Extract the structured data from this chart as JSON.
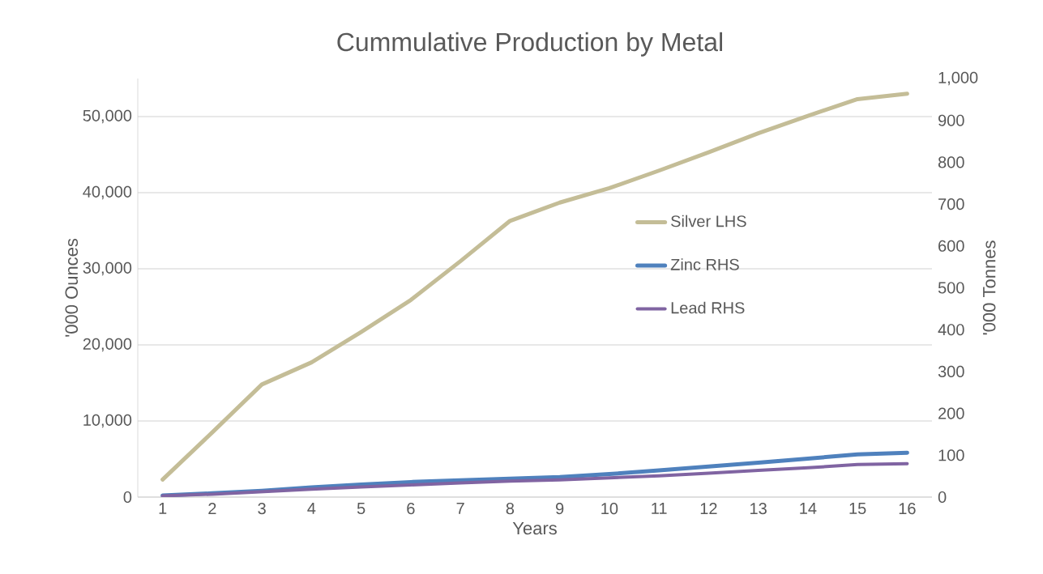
{
  "chart_data": {
    "type": "line",
    "title": "Cummulative Production by Metal",
    "xlabel": "Years",
    "ylabel": "'000 Ounces",
    "y2label": "'000 Tonnes",
    "categories": [
      "1",
      "2",
      "3",
      "4",
      "5",
      "6",
      "7",
      "8",
      "9",
      "10",
      "11",
      "12",
      "13",
      "14",
      "15",
      "16"
    ],
    "series": [
      {
        "name": "Silver LHS",
        "color": "#c4bd97",
        "values": [
          2300,
          8500,
          14800,
          17700,
          21700,
          25900,
          31000,
          36300,
          38700,
          40600,
          42900,
          45300,
          47800,
          50100,
          52300,
          53000
        ]
      },
      {
        "name": "Zinc RHS",
        "color": "#4f81bd",
        "axis": "y2",
        "values": [
          4,
          9,
          15,
          23,
          30,
          36,
          40,
          44,
          48,
          55,
          64,
          73,
          82,
          92,
          102,
          106
        ]
      },
      {
        "name": "Lead RHS",
        "color": "#8064a2",
        "axis": "y2",
        "values": [
          3,
          7,
          13,
          19,
          24,
          29,
          34,
          38,
          41,
          46,
          51,
          57,
          64,
          70,
          78,
          80
        ]
      }
    ],
    "ylim": [
      0,
      55000
    ],
    "yticks": [
      0,
      {
        "value": 10000,
        "label": "10,000"
      },
      {
        "value": 20000,
        "label": "20,000"
      },
      {
        "value": 30000,
        "label": "30,000"
      },
      {
        "value": 40000,
        "label": "40,000"
      },
      {
        "value": 50000,
        "label": "50,000"
      }
    ],
    "y2lim": [
      0,
      1000
    ],
    "y2ticks": [
      0,
      100,
      200,
      300,
      400,
      500,
      600,
      700,
      800,
      900,
      {
        "value": 1000,
        "label": "1,000"
      }
    ],
    "grid": "y",
    "legend": "right",
    "line_style": "solid",
    "marker": "none"
  }
}
